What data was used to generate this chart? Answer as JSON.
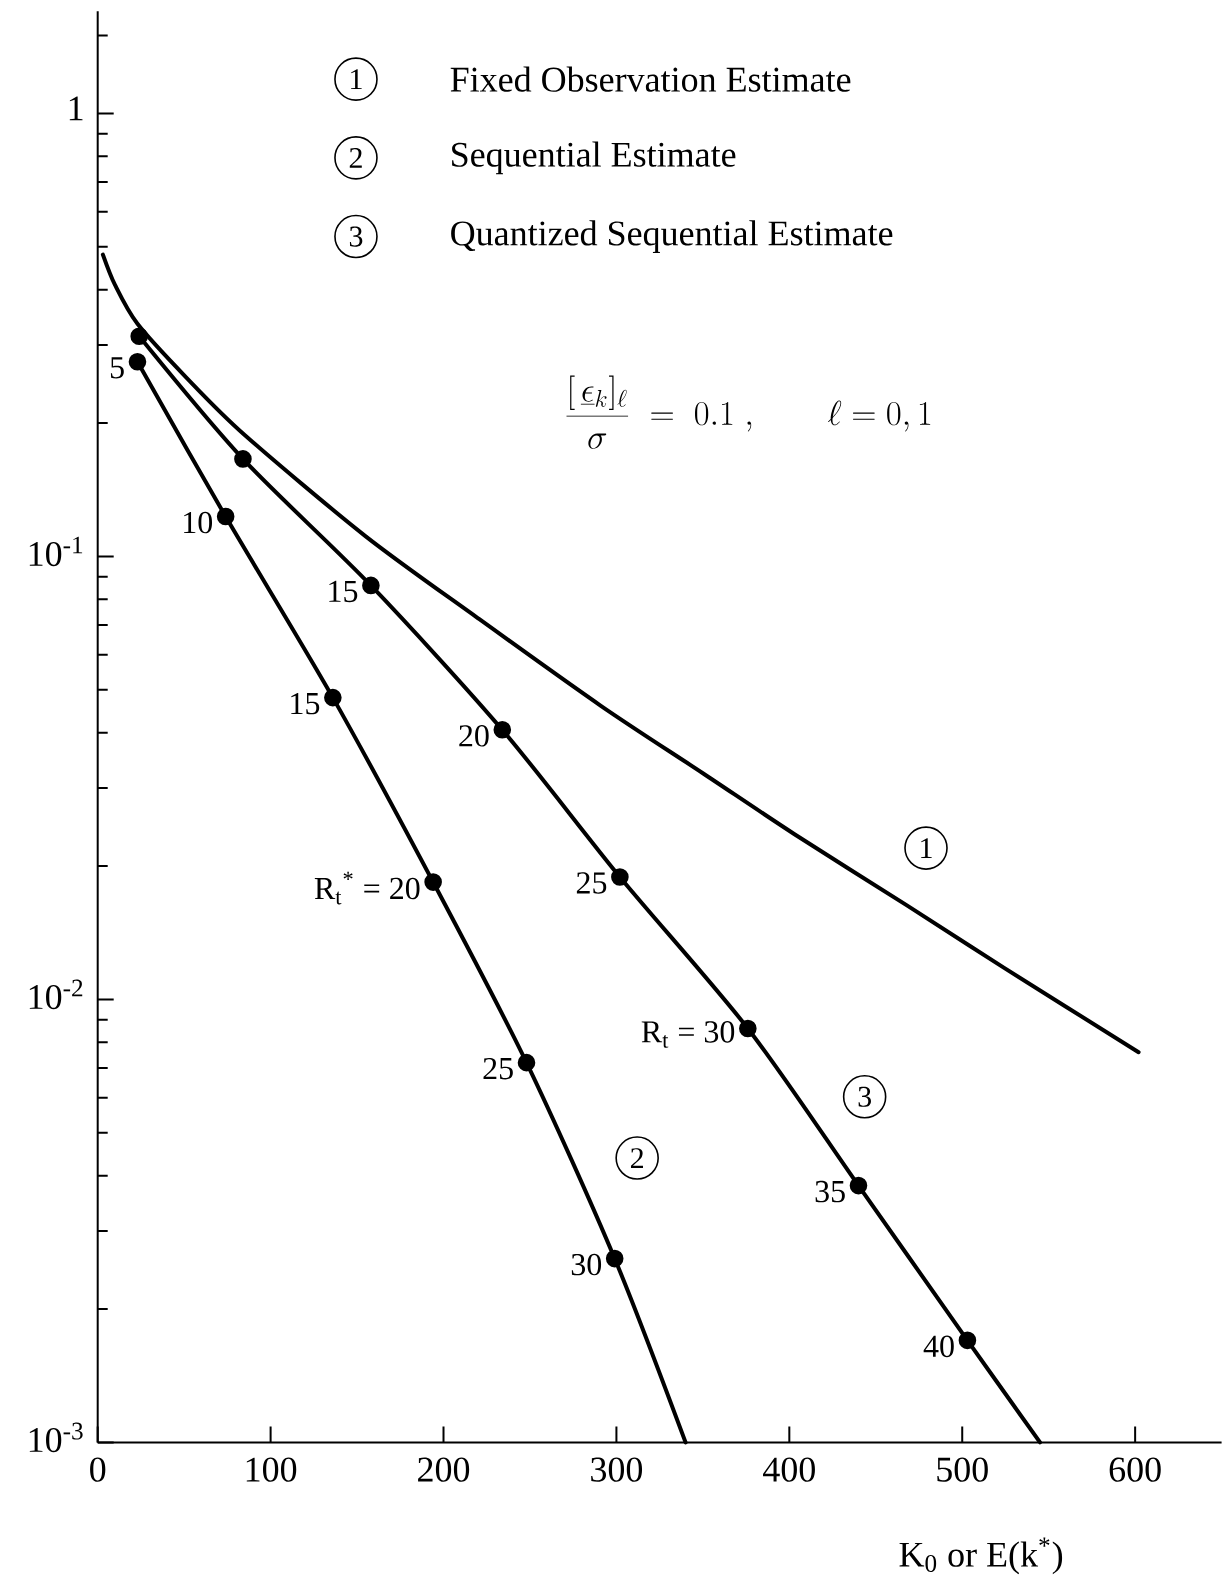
{
  "chart_data": {
    "type": "line",
    "log": "y",
    "legend": "top",
    "xlabel": "K$_{0}$ or E(k$^{*}$)",
    "xlim": [
      0,
      650
    ],
    "xticks": [
      0,
      100,
      200,
      300,
      400,
      500,
      600
    ],
    "ylim": [
      0.001,
      1.7
    ],
    "yticks": [
      {
        "value": 0.001,
        "label": "10$^{-3}$"
      },
      {
        "value": 0.002,
        "label": null
      },
      {
        "value": 0.003,
        "label": null
      },
      {
        "value": 0.004,
        "label": null
      },
      {
        "value": 0.005,
        "label": null
      },
      {
        "value": 0.006,
        "label": null
      },
      {
        "value": 0.007,
        "label": null
      },
      {
        "value": 0.008,
        "label": null
      },
      {
        "value": 0.009,
        "label": null
      },
      {
        "value": 0.01,
        "label": "10$^{-2}$"
      },
      {
        "value": 0.02,
        "label": null
      },
      {
        "value": 0.03,
        "label": null
      },
      {
        "value": 0.04,
        "label": null
      },
      {
        "value": 0.05,
        "label": null
      },
      {
        "value": 0.06,
        "label": null
      },
      {
        "value": 0.07,
        "label": null
      },
      {
        "value": 0.08,
        "label": null
      },
      {
        "value": 0.09,
        "label": null
      },
      {
        "value": 0.1,
        "label": "10$^{-1}$"
      },
      {
        "value": 0.2,
        "label": null
      },
      {
        "value": 0.3,
        "label": null
      },
      {
        "value": 0.4,
        "label": null
      },
      {
        "value": 0.5,
        "label": null
      },
      {
        "value": 0.6,
        "label": null
      },
      {
        "value": 0.7,
        "label": null
      },
      {
        "value": 0.8,
        "label": null
      },
      {
        "value": 0.9,
        "label": null
      },
      1,
      {
        "value": 1.5,
        "label": null
      }
    ],
    "series": [
      {
        "name": "Fixed Observation Estimate",
        "color": "#000000",
        "x": [
          3,
          10,
          23,
          51,
          85,
          155,
          220,
          291,
          350,
          403,
          468,
          524,
          602
        ],
        "values": [
          0.48,
          0.41,
          0.335,
          0.254,
          0.188,
          0.111,
          0.0725,
          0.046,
          0.0324,
          0.0236,
          0.0163,
          0.0118,
          0.0076
        ]
      },
      {
        "name": "Sequential Estimate",
        "color": "#000000",
        "x": [
          23,
          74,
          136,
          194,
          248,
          299,
          340
        ],
        "values": [
          0.275,
          0.123,
          0.048,
          0.0184,
          0.0072,
          0.0026,
          0.001
        ]
      },
      {
        "name": "Quantized Sequential Estimate",
        "color": "#000000",
        "x": [
          24,
          84,
          158,
          234,
          302,
          376,
          440,
          503,
          545
        ],
        "values": [
          0.314,
          0.166,
          0.086,
          0.0406,
          0.0189,
          0.0086,
          0.0038,
          0.0017,
          0.001
        ]
      },
      {
        "type": "scatter",
        "color": "#000000",
        "x": [
          23,
          74,
          136,
          194,
          248,
          299
        ],
        "values": [
          0.275,
          0.123,
          0.048,
          0.0184,
          0.0072,
          0.0026
        ]
      },
      {
        "type": "scatter",
        "color": "#000000",
        "x": [
          24,
          84,
          158,
          234,
          302,
          376,
          440,
          503
        ],
        "values": [
          0.314,
          0.166,
          0.086,
          0.0406,
          0.0189,
          0.0086,
          0.0038,
          0.0017
        ]
      }
    ],
    "annotations": [
      "1",
      "2",
      "3",
      "\\frac{[\\,\\underline{\\epsilon}_{k}]_{\\ell}}{\\sigma} \\; = \\; 0.1\\;, \\qquad \\ell = 0,1",
      {
        "text": "5",
        "x": 23,
        "y": 0.275
      },
      {
        "text": "10",
        "x": 74,
        "y": 0.123
      },
      {
        "text": "15",
        "x": 136,
        "y": 0.048
      },
      {
        "text": "R$_{t}$$^{*}$ = 20",
        "x": 194,
        "y": 0.0184
      },
      {
        "text": "25",
        "x": 248,
        "y": 0.0072
      },
      {
        "text": "30",
        "x": 299,
        "y": 0.0026
      },
      {
        "text": "15",
        "x": 158,
        "y": 0.086
      },
      {
        "text": "20",
        "x": 234,
        "y": 0.0406
      },
      {
        "text": "25",
        "x": 302,
        "y": 0.0189
      },
      {
        "text": "R$_{t}$ = 30",
        "x": 376,
        "y": 0.0086
      },
      {
        "text": "35",
        "x": 440,
        "y": 0.0038
      },
      {
        "text": "40",
        "x": 503,
        "y": 0.0017
      }
    ]
  }
}
